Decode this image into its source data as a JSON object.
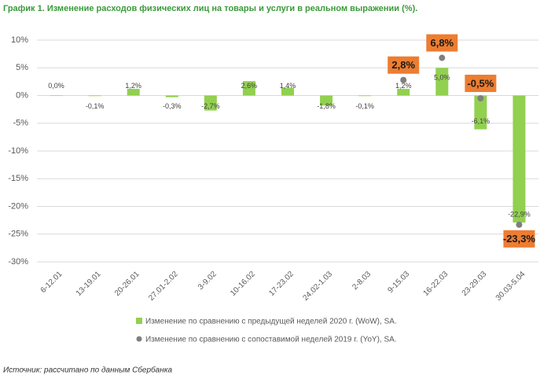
{
  "chart_data": {
    "type": "bar",
    "title": "График 1. Изменение расходов физических лиц на товары и услуги в реальном выражении (%).",
    "categories": [
      "6-12.01",
      "13-19.01",
      "20-26.01",
      "27.01-2.02",
      "3-9.02",
      "10-16.02",
      "17-23.02",
      "24.02-1.03",
      "2-8.03",
      "9-15.03",
      "16-22.03",
      "23-29.03",
      "30.03-5.04"
    ],
    "series": [
      {
        "name": "Изменение по сравнению с предыдущей неделей 2020 г. (WoW), SA.",
        "color": "#92d050",
        "values": [
          0.0,
          -0.1,
          1.2,
          -0.3,
          -2.7,
          2.6,
          1.4,
          -1.8,
          -0.1,
          1.2,
          5.0,
          -6.1,
          -22.9
        ],
        "value_labels": [
          "0,0%",
          "-0,1%",
          "1,2%",
          "-0,3%",
          "-2,7%",
          "2,6%",
          "1,4%",
          "-1,8%",
          "-0,1%",
          "1,2%",
          "5,0%",
          "-6,1%",
          "-22,9%"
        ]
      },
      {
        "name": "Изменение по сравнению с сопоставимой неделей 2019 г. (YoY), SA.",
        "color": "#7f7f7f",
        "values": [
          null,
          null,
          null,
          null,
          null,
          null,
          null,
          null,
          null,
          2.8,
          6.8,
          -0.5,
          -23.3
        ],
        "value_labels": [
          null,
          null,
          null,
          null,
          null,
          null,
          null,
          null,
          null,
          "2,8%",
          "6,8%",
          "-0,5%",
          "-23,3%"
        ]
      }
    ],
    "ylim": [
      -30,
      10
    ],
    "yticks": [
      {
        "value": 10,
        "label": "10%"
      },
      {
        "value": 5,
        "label": "5%"
      },
      {
        "value": 0,
        "label": "0%"
      },
      {
        "value": -5,
        "label": "-5%"
      },
      {
        "value": -10,
        "label": "-10%"
      },
      {
        "value": -15,
        "label": "-15%"
      },
      {
        "value": -20,
        "label": "-20%"
      },
      {
        "value": -25,
        "label": "-25%"
      },
      {
        "value": -30,
        "label": "-30%"
      }
    ],
    "grid": true,
    "source": "Источник: рассчитано по данным Сбербанка"
  }
}
